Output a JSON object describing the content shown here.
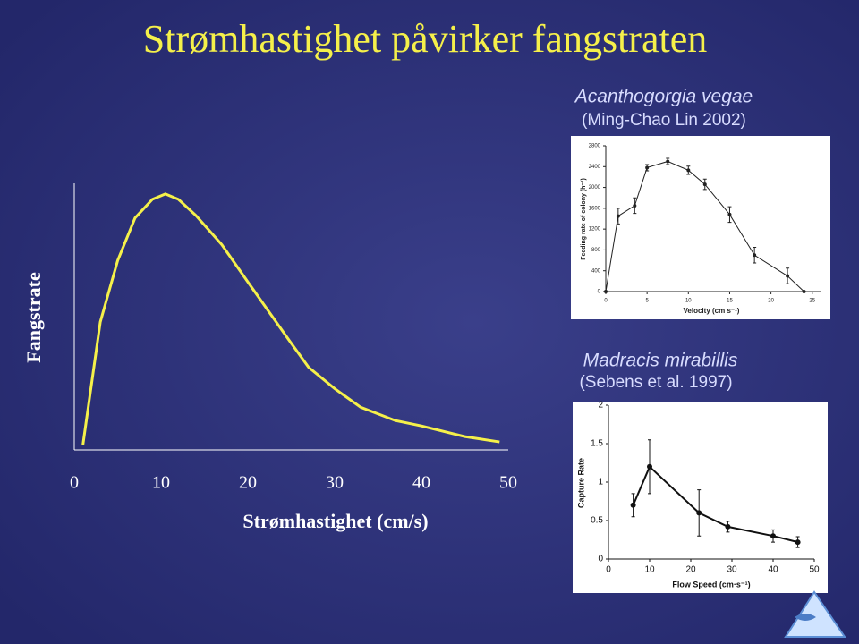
{
  "title": "Strømhastighet påvirker fangstraten",
  "chart_data": [
    {
      "type": "line",
      "x_label": "Strømhastighet (cm/s)",
      "y_label": "Fangstrate",
      "color": "#f5f04a",
      "x": [
        1,
        3,
        5,
        7,
        9,
        10.5,
        12,
        14,
        17,
        20,
        25,
        27,
        30,
        33,
        37,
        40,
        45,
        49
      ],
      "values": [
        2,
        48,
        71,
        87,
        94,
        96,
        94,
        88,
        77,
        63,
        40,
        31,
        23,
        16,
        11,
        9,
        5,
        3
      ],
      "xlim": [
        0,
        50
      ],
      "xticks": [
        0,
        10,
        20,
        30,
        40,
        50
      ],
      "ylim": [
        0,
        100
      ]
    },
    {
      "type": "line",
      "title": "Acanthogorgia vegae",
      "subtitle": "(Ming-Chao Lin 2002)",
      "x_label": "Velocity (cm s⁻¹)",
      "y_label": "Feeding rate of colony (h⁻¹)",
      "color": "#222222",
      "x": [
        0,
        1.5,
        3.5,
        5,
        7.5,
        10,
        12,
        15,
        18,
        22,
        24
      ],
      "values": [
        0,
        1450,
        1650,
        2380,
        2500,
        2330,
        2060,
        1480,
        700,
        300,
        0
      ],
      "errors": [
        0,
        150,
        150,
        60,
        60,
        80,
        100,
        150,
        150,
        150,
        0
      ],
      "xlim": [
        0,
        26
      ],
      "xticks": [
        0,
        5,
        10,
        15,
        20,
        25
      ],
      "ylim": [
        0,
        2800
      ],
      "yticks": [
        0,
        400,
        800,
        1200,
        1600,
        2000,
        2400,
        2800
      ]
    },
    {
      "type": "line",
      "title": "Madracis mirabillis",
      "subtitle": "(Sebens et al. 1997)",
      "x_label": "Flow Speed (cm·s⁻¹)",
      "y_label": "Capture Rate",
      "color": "#111111",
      "x": [
        6,
        10,
        22,
        29,
        40,
        46
      ],
      "values": [
        0.7,
        1.2,
        0.6,
        0.42,
        0.3,
        0.22
      ],
      "errors": [
        0.15,
        0.35,
        0.3,
        0.07,
        0.08,
        0.07
      ],
      "xlim": [
        0,
        50
      ],
      "xticks": [
        0,
        10,
        20,
        30,
        40,
        50
      ],
      "ylim": [
        0,
        2
      ],
      "yticks": [
        0,
        0.5,
        1,
        1.5,
        2
      ]
    }
  ]
}
